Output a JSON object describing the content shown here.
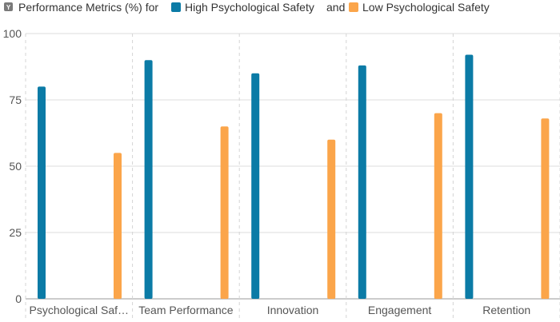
{
  "legend": {
    "axis_badge": "Y",
    "prefix": "Performance Metrics (%) for",
    "connector": "and"
  },
  "chart_data": {
    "type": "bar",
    "title": "Performance Metrics (%) for High Psychological Safety and Low Psychological Safety",
    "categories": [
      "Psychological Saf…",
      "Team Performance",
      "Innovation",
      "Engagement",
      "Retention"
    ],
    "series": [
      {
        "name": "High Psychological Safety",
        "values": [
          80,
          90,
          85,
          88,
          92
        ],
        "color": "#0b7ba6"
      },
      {
        "name": "Low Psychological Safety",
        "values": [
          55,
          65,
          60,
          70,
          68
        ],
        "color": "#fba54a"
      }
    ],
    "ylim": [
      0,
      100
    ],
    "yticks": [
      0,
      25,
      50,
      75,
      100
    ],
    "grid": true,
    "legend_position": "top-left"
  }
}
